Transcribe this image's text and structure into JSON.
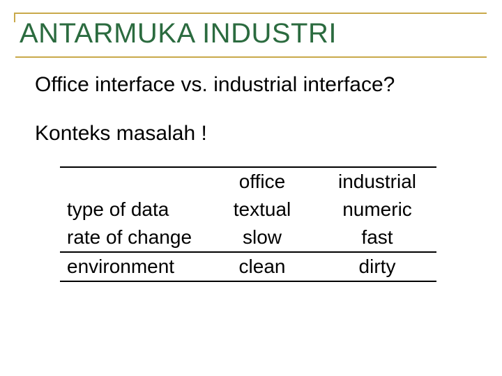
{
  "theme": {
    "title_color": "#2b6b3f",
    "accent_border_color": "#c9a94a",
    "text_color": "#000000",
    "background_color": "#ffffff",
    "title_fontsize": 40,
    "body_fontsize": 30,
    "table_fontsize": 28,
    "rule_color": "#000000"
  },
  "title": "ANTARMUKA INDUSTRI",
  "subtitle": "Office interface vs. industrial interface?",
  "context": "Konteks masalah !",
  "table": {
    "columns": [
      "",
      "office",
      "industrial"
    ],
    "col_align": [
      "left",
      "center",
      "center"
    ],
    "rows": [
      [
        "type of data",
        "textual",
        "numeric"
      ],
      [
        "rate of change",
        "slow",
        "fast"
      ],
      [
        "environment",
        "clean",
        "dirty"
      ]
    ],
    "rules": {
      "top_of_header": true,
      "under_row_1": true,
      "under_row_3": true
    }
  }
}
